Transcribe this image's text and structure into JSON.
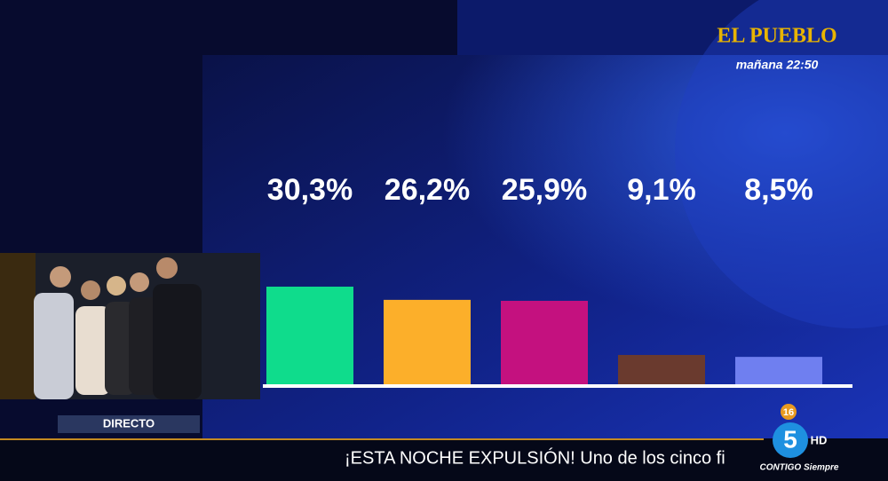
{
  "chart_data": {
    "type": "bar",
    "values": [
      30.3,
      26.2,
      25.9,
      9.1,
      8.5
    ],
    "value_labels": [
      "30,3%",
      "26,2%",
      "25,9%",
      "9,1%",
      "8,5%"
    ],
    "colors": [
      "#0fdc8c",
      "#fcaf2a",
      "#c4117f",
      "#6a3a2e",
      "#6f7ff0"
    ]
  },
  "show": {
    "title": "EL PUEBLO",
    "schedule": "mañana 22:50"
  },
  "inset": {
    "label": "DIRECTO"
  },
  "ticker": {
    "text": "¡ESTA NOCHE EXPULSIÓN! Uno de los cinco fi"
  },
  "channel": {
    "rating": "16",
    "logo": "5",
    "hd": "HD",
    "slogan": "CONTIGO Siempre"
  }
}
